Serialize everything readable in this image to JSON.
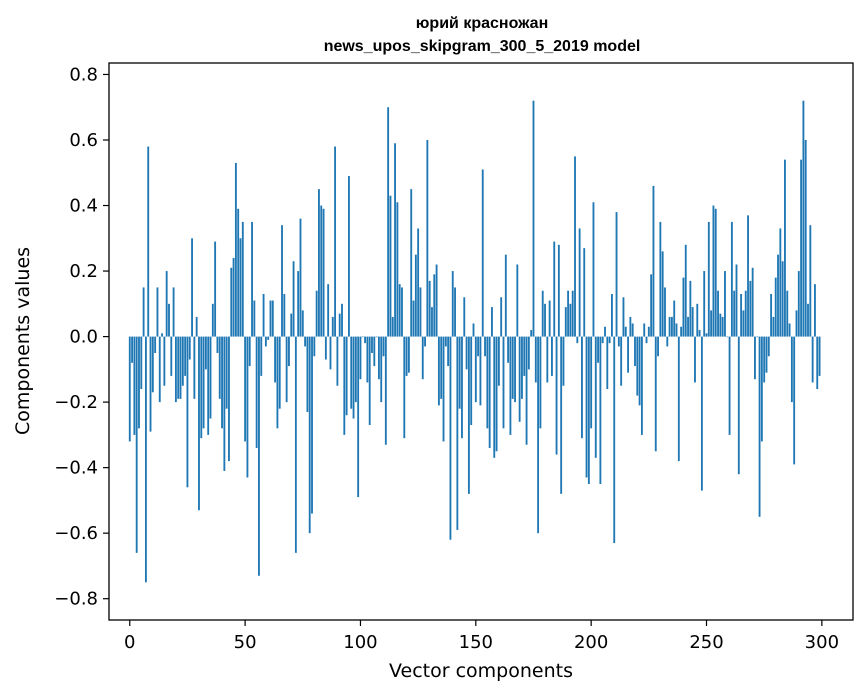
{
  "chart_data": {
    "type": "bar",
    "title": "юрий красножан",
    "subtitle": "news_upos_skipgram_300_5_2019 model",
    "xlabel": "Vector components",
    "ylabel": "Components values",
    "xlim": [
      -9,
      313.5
    ],
    "ylim": [
      -0.865,
      0.835
    ],
    "xticks": [
      0,
      50,
      100,
      150,
      200,
      250,
      300
    ],
    "yticks": [
      -0.8,
      -0.6,
      -0.4,
      -0.2,
      0.0,
      0.2,
      0.4,
      0.6,
      0.8
    ],
    "ytick_labels": [
      "−0.8",
      "−0.6",
      "−0.4",
      "−0.2",
      "0.0",
      "0.2",
      "0.4",
      "0.6",
      "0.8"
    ],
    "bar_color": "#1f77b4",
    "series": [
      {
        "name": "components",
        "values": [
          -0.32,
          -0.08,
          -0.3,
          -0.66,
          -0.28,
          -0.16,
          0.15,
          -0.75,
          0.58,
          -0.29,
          -0.17,
          -0.05,
          0.15,
          -0.2,
          0.01,
          -0.15,
          0.2,
          0.1,
          -0.12,
          0.15,
          -0.2,
          -0.19,
          -0.19,
          -0.15,
          -0.12,
          -0.46,
          -0.07,
          0.3,
          -0.19,
          0.06,
          -0.53,
          -0.31,
          -0.28,
          -0.1,
          -0.3,
          -0.25,
          0.1,
          0.29,
          -0.05,
          -0.19,
          -0.28,
          -0.41,
          -0.22,
          -0.38,
          0.21,
          0.24,
          0.53,
          0.39,
          0.3,
          0.35,
          -0.32,
          -0.43,
          -0.09,
          0.35,
          0.11,
          -0.34,
          -0.73,
          -0.12,
          0.13,
          -0.03,
          -0.01,
          0.11,
          0.11,
          -0.14,
          -0.28,
          -0.22,
          0.34,
          0.13,
          -0.2,
          -0.09,
          0.07,
          0.23,
          -0.66,
          0.2,
          0.36,
          0.08,
          -0.03,
          -0.23,
          -0.6,
          -0.54,
          -0.06,
          0.14,
          0.45,
          0.4,
          0.39,
          -0.07,
          0.16,
          -0.1,
          0.06,
          0.58,
          -0.15,
          0.07,
          0.1,
          -0.3,
          -0.24,
          0.49,
          -0.22,
          -0.25,
          -0.2,
          -0.49,
          -0.13,
          0.0,
          -0.02,
          -0.14,
          -0.27,
          -0.05,
          -0.09,
          0.0,
          -0.13,
          -0.2,
          -0.06,
          -0.33,
          0.7,
          0.43,
          0.06,
          0.59,
          0.41,
          0.16,
          0.15,
          -0.31,
          -0.12,
          -0.11,
          0.45,
          0.11,
          0.25,
          0.33,
          0.15,
          -0.13,
          -0.03,
          0.6,
          0.17,
          0.09,
          0.19,
          0.22,
          -0.21,
          -0.19,
          -0.32,
          -0.03,
          -0.09,
          -0.62,
          0.2,
          0.15,
          -0.59,
          -0.22,
          -0.31,
          0.12,
          -0.1,
          -0.48,
          -0.27,
          0.04,
          -0.2,
          -0.06,
          -0.21,
          0.51,
          -0.06,
          -0.28,
          -0.34,
          0.09,
          -0.37,
          -0.35,
          -0.15,
          0.12,
          -0.28,
          0.25,
          -0.08,
          -0.3,
          -0.19,
          -0.2,
          0.22,
          -0.26,
          -0.19,
          -0.12,
          -0.33,
          -0.1,
          0.02,
          0.72,
          -0.14,
          -0.6,
          -0.28,
          0.14,
          0.1,
          -0.14,
          0.11,
          -0.12,
          0.29,
          -0.36,
          0.28,
          -0.48,
          -0.15,
          0.09,
          0.14,
          0.1,
          0.14,
          0.55,
          -0.02,
          0.33,
          -0.31,
          0.27,
          -0.43,
          -0.45,
          -0.28,
          0.41,
          -0.37,
          -0.08,
          -0.45,
          -0.02,
          0.03,
          -0.16,
          -0.02,
          0.13,
          -0.63,
          0.38,
          -0.03,
          -0.15,
          0.12,
          0.03,
          -0.11,
          0.06,
          0.04,
          -0.09,
          -0.18,
          -0.21,
          -0.3,
          0.04,
          -0.02,
          0.03,
          0.19,
          0.46,
          -0.35,
          -0.06,
          0.35,
          0.26,
          0.15,
          -0.03,
          0.06,
          0.06,
          0.11,
          0.04,
          -0.38,
          0.03,
          0.18,
          0.28,
          0.06,
          0.17,
          0.09,
          -0.14,
          0.1,
          0.02,
          -0.47,
          0.2,
          0.01,
          0.35,
          0.08,
          0.4,
          0.39,
          0.14,
          0.07,
          0.06,
          0.2,
          0.0,
          -0.3,
          0.35,
          0.14,
          0.22,
          -0.42,
          0.13,
          0.08,
          0.14,
          0.37,
          0.17,
          0.21,
          -0.13,
          0.0,
          -0.55,
          -0.32,
          -0.14,
          -0.11,
          -0.06,
          0.13,
          0.06,
          0.18,
          0.25,
          0.33,
          0.23,
          0.54,
          0.14,
          0.04,
          -0.2,
          -0.39,
          0.08,
          0.2,
          0.54,
          0.72,
          0.6,
          0.1,
          0.34,
          -0.14,
          0.16,
          -0.16,
          -0.12
        ]
      }
    ]
  }
}
